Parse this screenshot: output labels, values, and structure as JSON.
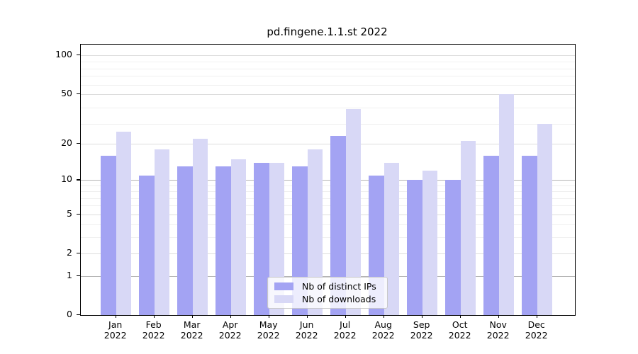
{
  "title": "pd.fingene.1.1.st 2022",
  "chart_data": {
    "type": "bar",
    "title": "pd.fingene.1.1.st 2022",
    "categories": [
      "Jan 2022",
      "Feb 2022",
      "Mar 2022",
      "Apr 2022",
      "May 2022",
      "Jun 2022",
      "Jul 2022",
      "Aug 2022",
      "Sep 2022",
      "Oct 2022",
      "Nov 2022",
      "Dec 2022"
    ],
    "month_labels": [
      "Jan",
      "Feb",
      "Mar",
      "Apr",
      "May",
      "Jun",
      "Jul",
      "Aug",
      "Sep",
      "Oct",
      "Nov",
      "Dec"
    ],
    "year_label": "2022",
    "series": [
      {
        "name": "Nb of distinct IPs",
        "color": "#a3a3f3",
        "values": [
          16,
          11,
          13,
          13,
          14,
          13,
          23,
          11,
          10,
          10,
          16,
          16
        ]
      },
      {
        "name": "Nb of downloads",
        "color": "#d8d8f6",
        "values": [
          25,
          18,
          22,
          15,
          14,
          18,
          38,
          14,
          12,
          21,
          50,
          29
        ]
      }
    ],
    "xlabel": "",
    "ylabel": "",
    "y_scale": "log10(1+x)",
    "y_ticks": [
      0,
      1,
      2,
      5,
      10,
      20,
      50,
      100
    ],
    "y_minor_grid_values": [
      3,
      4,
      6,
      7,
      8,
      9,
      29,
      39,
      59,
      69,
      79,
      89
    ],
    "y_strong_grid_ticks": [
      1,
      10
    ],
    "ylim": [
      0,
      121
    ],
    "grid": "on",
    "legend_position": "lower center"
  }
}
